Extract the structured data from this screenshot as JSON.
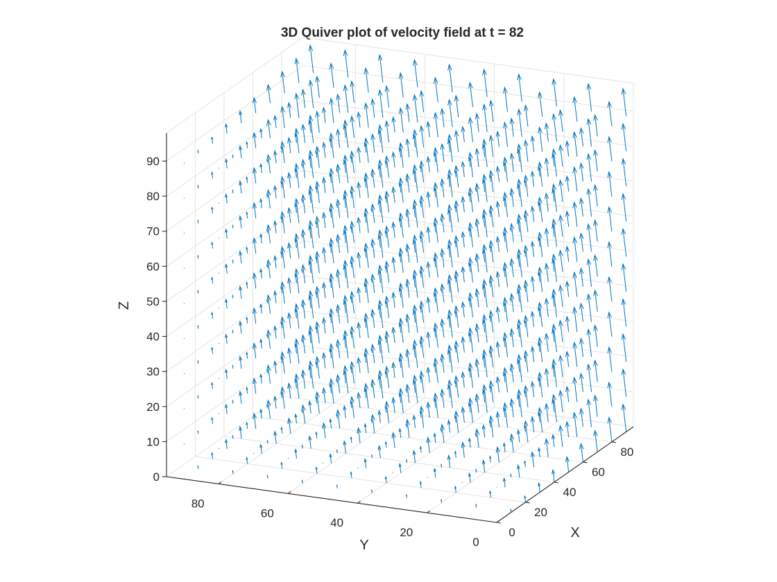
{
  "chart_data": {
    "type": "quiver3",
    "title": "3D Quiver plot of velocity field at t = 82",
    "xlabel": "X",
    "ylabel": "Y",
    "zlabel": "Z",
    "xlim": [
      0,
      95
    ],
    "ylim": [
      0,
      95
    ],
    "zlim": [
      0,
      98
    ],
    "xticks": [
      0,
      20,
      40,
      60,
      80
    ],
    "yticks": [
      0,
      20,
      40,
      60,
      80
    ],
    "zticks": [
      0,
      10,
      20,
      30,
      40,
      50,
      60,
      70,
      80,
      90
    ],
    "grid": true,
    "arrow_color": "#0072BD",
    "grid_spacing": 10,
    "x_values": [
      0,
      10,
      20,
      30,
      40,
      50,
      60,
      70,
      80,
      90
    ],
    "y_values": [
      0,
      10,
      20,
      30,
      40,
      50,
      60,
      70,
      80,
      90
    ],
    "z_values": [
      0,
      10,
      20,
      30,
      40,
      50,
      60,
      70,
      80,
      90
    ],
    "velocity_field": "arrow length grows with X; arrows near X = 90 are longest (about 8 units), near X = 0 nearly zero; direction mostly +Z with a small component toward -X / +Y"
  }
}
